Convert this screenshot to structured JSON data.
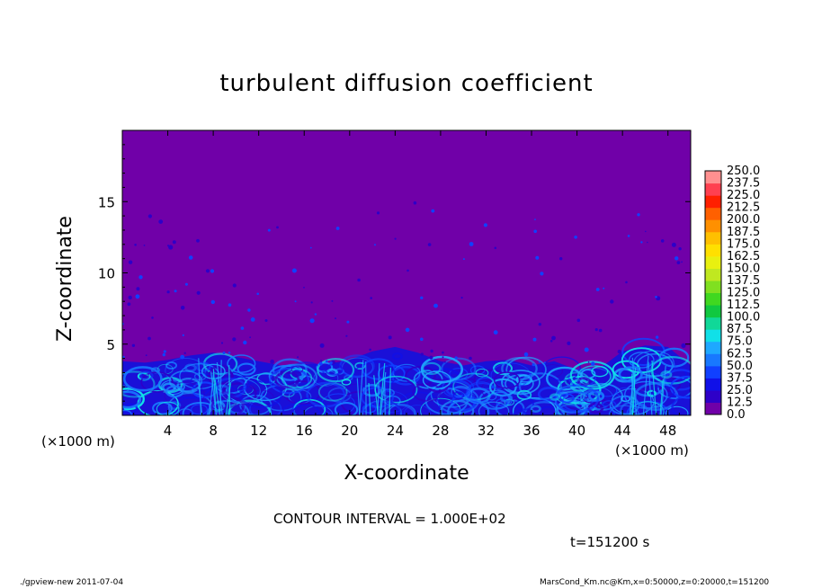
{
  "chart_data": {
    "type": "heatmap",
    "title": "turbulent diffusion coefficient",
    "xlabel": "X-coordinate",
    "ylabel": "Z-coordinate",
    "x_unit": "(×1000 m)",
    "xlim": [
      0,
      50
    ],
    "ylim": [
      0,
      20
    ],
    "x_ticks": [
      4,
      8,
      12,
      16,
      20,
      24,
      28,
      32,
      36,
      40,
      44,
      48
    ],
    "y_ticks": [
      5,
      10,
      15
    ],
    "colorbar": {
      "levels": [
        "0.0",
        "12.5",
        "25.0",
        "37.5",
        "50.0",
        "62.5",
        "75.0",
        "87.5",
        "100.0",
        "112.5",
        "125.0",
        "137.5",
        "150.0",
        "162.5",
        "175.0",
        "187.5",
        "200.0",
        "212.5",
        "225.0",
        "237.5",
        "250.0"
      ],
      "colors": [
        "#7000a8",
        "#2e00c8",
        "#1010e8",
        "#1040ff",
        "#1878ff",
        "#1ea8ff",
        "#10e0e8",
        "#10d898",
        "#10c840",
        "#40d820",
        "#80e020",
        "#c0e820",
        "#e8f010",
        "#ffe000",
        "#ffc000",
        "#ff9000",
        "#ff6000",
        "#ff2000",
        "#ff4050",
        "#ff9090"
      ]
    },
    "boundary_layer_height_z": [
      3.8,
      3.7,
      3.9,
      4.2,
      4.4,
      4.1,
      3.8,
      3.5,
      3.6,
      3.6,
      3.9,
      4.5,
      4.8,
      4.4,
      3.8,
      3.5,
      3.8,
      3.9,
      3.5,
      3.8,
      3.2,
      3.3,
      4.5,
      4.9,
      4.8,
      3.5
    ],
    "background_color": "#7000a8",
    "contour_interval": "CONTOUR INTERVAL = 1.000E+02",
    "time": "t=151200 s"
  },
  "footer": {
    "left": "./gpview-new   2011-07-04",
    "right": "MarsCond_Km.nc@Km,x=0:50000,z=0:20000,t=151200"
  }
}
